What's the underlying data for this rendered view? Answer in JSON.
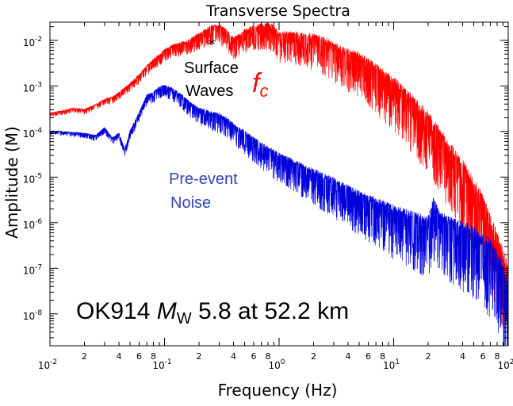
{
  "chart_data": {
    "type": "line",
    "title": "Transverse Spectra",
    "xlabel": "Frequency (Hz)",
    "ylabel": "Amplitude (M)",
    "x_scale": "log",
    "y_scale": "log",
    "xlim": [
      0.01,
      100
    ],
    "ylim": [
      2e-09,
      0.025
    ],
    "grid": false,
    "x_major_ticks": [
      {
        "value": 0.01,
        "base": "10",
        "exp": "-2"
      },
      {
        "value": 0.1,
        "base": "10",
        "exp": "-1"
      },
      {
        "value": 1,
        "base": "10",
        "exp": "0"
      },
      {
        "value": 10,
        "base": "10",
        "exp": "1"
      },
      {
        "value": 100,
        "base": "10",
        "exp": "2"
      }
    ],
    "x_minor_labels": [
      {
        "value": 0.02,
        "label": "2"
      },
      {
        "value": 0.04,
        "label": "4"
      },
      {
        "value": 0.06,
        "label": "6"
      },
      {
        "value": 0.08,
        "label": "8"
      },
      {
        "value": 0.2,
        "label": "2"
      },
      {
        "value": 0.4,
        "label": "4"
      },
      {
        "value": 0.6,
        "label": "6"
      },
      {
        "value": 0.8,
        "label": "8"
      },
      {
        "value": 2,
        "label": "2"
      },
      {
        "value": 4,
        "label": "4"
      },
      {
        "value": 6,
        "label": "6"
      },
      {
        "value": 8,
        "label": "8"
      },
      {
        "value": 20,
        "label": "2"
      },
      {
        "value": 40,
        "label": "4"
      },
      {
        "value": 60,
        "label": "6"
      },
      {
        "value": 80,
        "label": "8"
      }
    ],
    "y_major_ticks": [
      {
        "value": 1e-08,
        "base": "10",
        "exp": "-8"
      },
      {
        "value": 1e-07,
        "base": "10",
        "exp": "-7"
      },
      {
        "value": 1e-06,
        "base": "10",
        "exp": "-6"
      },
      {
        "value": 1e-05,
        "base": "10",
        "exp": "-5"
      },
      {
        "value": 0.0001,
        "base": "10",
        "exp": "-4"
      },
      {
        "value": 0.001,
        "base": "10",
        "exp": "-3"
      },
      {
        "value": 0.01,
        "base": "10",
        "exp": "-2"
      }
    ],
    "series": [
      {
        "color": "#ff0000",
        "x": [
          0.01,
          0.013,
          0.016,
          0.02,
          0.025,
          0.03,
          0.035,
          0.04,
          0.05,
          0.06,
          0.07,
          0.08,
          0.09,
          0.1,
          0.12,
          0.14,
          0.16,
          0.18,
          0.2,
          0.23,
          0.26,
          0.3,
          0.35,
          0.4,
          0.45,
          0.5,
          0.6,
          0.7,
          0.8,
          0.9,
          1,
          1.2,
          1.5,
          2,
          2.5,
          3,
          4,
          5,
          6,
          7,
          8,
          10,
          12,
          15,
          20,
          25,
          30,
          40,
          50,
          60,
          70,
          80,
          90,
          100
        ],
        "values": [
          0.00025,
          0.00028,
          0.00032,
          0.0003,
          0.00038,
          0.0005,
          0.00055,
          0.0007,
          0.0011,
          0.0017,
          0.0026,
          0.0038,
          0.0045,
          0.006,
          0.0075,
          0.0085,
          0.009,
          0.011,
          0.013,
          0.016,
          0.019,
          0.02,
          0.015,
          0.01,
          0.012,
          0.015,
          0.018,
          0.02,
          0.02,
          0.018,
          0.012,
          0.013,
          0.012,
          0.011,
          0.009,
          0.007,
          0.005,
          0.004,
          0.003,
          0.0022,
          0.0017,
          0.0011,
          0.0007,
          0.0004,
          0.00018,
          8e-05,
          4e-05,
          1.5e-05,
          6e-06,
          2.5e-06,
          1e-06,
          4e-07,
          1.5e-07,
          8e-08
        ]
      },
      {
        "color": "#0000dd",
        "x": [
          0.01,
          0.012,
          0.015,
          0.02,
          0.025,
          0.03,
          0.035,
          0.04,
          0.045,
          0.05,
          0.06,
          0.07,
          0.08,
          0.09,
          0.1,
          0.12,
          0.14,
          0.16,
          0.18,
          0.2,
          0.25,
          0.3,
          0.35,
          0.4,
          0.5,
          0.6,
          0.7,
          0.8,
          1,
          1.5,
          2,
          3,
          4,
          5,
          6,
          8,
          10,
          15,
          20,
          22,
          25,
          30,
          40,
          50,
          60,
          70,
          80,
          90,
          100
        ],
        "values": [
          0.0001,
          0.0001,
          9.5e-05,
          9e-05,
          8e-05,
          0.00012,
          7e-05,
          9e-05,
          4e-05,
          0.0001,
          0.00025,
          0.0006,
          0.0007,
          0.0009,
          0.001,
          0.0008,
          0.0006,
          0.00045,
          0.00035,
          0.0003,
          0.00025,
          0.00022,
          0.00018,
          0.00013,
          9e-05,
          6.5e-05,
          5e-05,
          4e-05,
          2.8e-05,
          1.7e-05,
          1.2e-05,
          7.5e-06,
          5e-06,
          3.8e-06,
          3e-06,
          2.2e-06,
          1.7e-06,
          1.2e-06,
          9e-07,
          2.5e-06,
          1.2e-06,
          9e-07,
          7e-07,
          5e-07,
          3.5e-07,
          2.5e-07,
          1.5e-07,
          7e-08,
          3e-08
        ]
      }
    ],
    "annotations": {
      "asterisk": "*",
      "surface_line1": "Surface",
      "surface_line2": "Waves",
      "fc_main": "f",
      "fc_sub": "c",
      "noise_line1": "Pre-event",
      "noise_line2": "Noise",
      "event_prefix": "OK914 ",
      "event_m": "M",
      "event_w": "W",
      "event_rest": " 5.8 at 52.2 km"
    },
    "colors": {
      "red_series": "#ff0000",
      "blue_series": "#0000dd",
      "noise_label": "#3344bb",
      "surface_label": "#000000",
      "fc_label": "#ee1111"
    }
  }
}
